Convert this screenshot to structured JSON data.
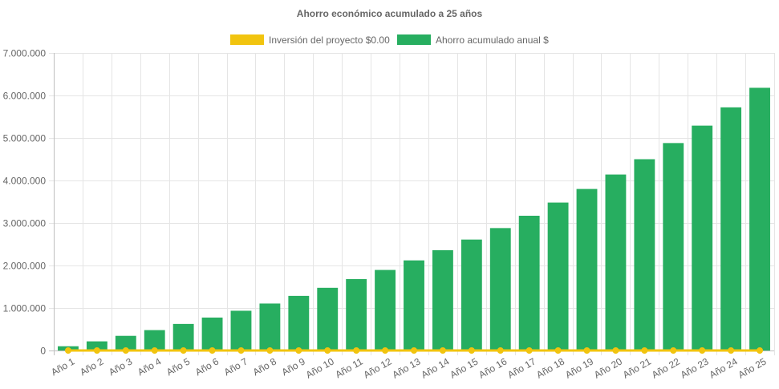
{
  "chart_data": {
    "type": "bar",
    "title": "Ahorro económico acumulado a 25 años",
    "xlabel": "",
    "ylabel": "",
    "ylim": [
      0,
      7000000
    ],
    "y_ticks": [
      0,
      1000000,
      2000000,
      3000000,
      4000000,
      5000000,
      6000000,
      7000000
    ],
    "y_tick_labels": [
      "0",
      "1.000.000",
      "2.000.000",
      "3.000.000",
      "4.000.000",
      "5.000.000",
      "6.000.000",
      "7.000.000"
    ],
    "grid": true,
    "legend_position": "top-center",
    "categories": [
      "Año 1",
      "Año 2",
      "Año 3",
      "Año 4",
      "Año 5",
      "Año 6",
      "Año 7",
      "Año 8",
      "Año 9",
      "Año 10",
      "Año 11",
      "Año 12",
      "Año 13",
      "Año 14",
      "Año 15",
      "Año 16",
      "Año 17",
      "Año 18",
      "Año 19",
      "Año 20",
      "Año 21",
      "Año 22",
      "Año 23",
      "Año 24",
      "Año 25"
    ],
    "series": [
      {
        "name": "Inversión del proyecto $0.00",
        "type": "line",
        "color": "#f1c40f",
        "values": [
          0,
          0,
          0,
          0,
          0,
          0,
          0,
          0,
          0,
          0,
          0,
          0,
          0,
          0,
          0,
          0,
          0,
          0,
          0,
          0,
          0,
          0,
          0,
          0,
          0
        ]
      },
      {
        "name": "Ahorro acumulado anual $",
        "type": "bar",
        "color": "#27ae60",
        "values": [
          100000,
          215000,
          345000,
          480000,
          625000,
          775000,
          935000,
          1105000,
          1285000,
          1475000,
          1680000,
          1895000,
          2120000,
          2360000,
          2610000,
          2880000,
          3170000,
          3480000,
          3800000,
          4140000,
          4500000,
          4880000,
          5290000,
          5720000,
          6180000
        ]
      }
    ]
  }
}
